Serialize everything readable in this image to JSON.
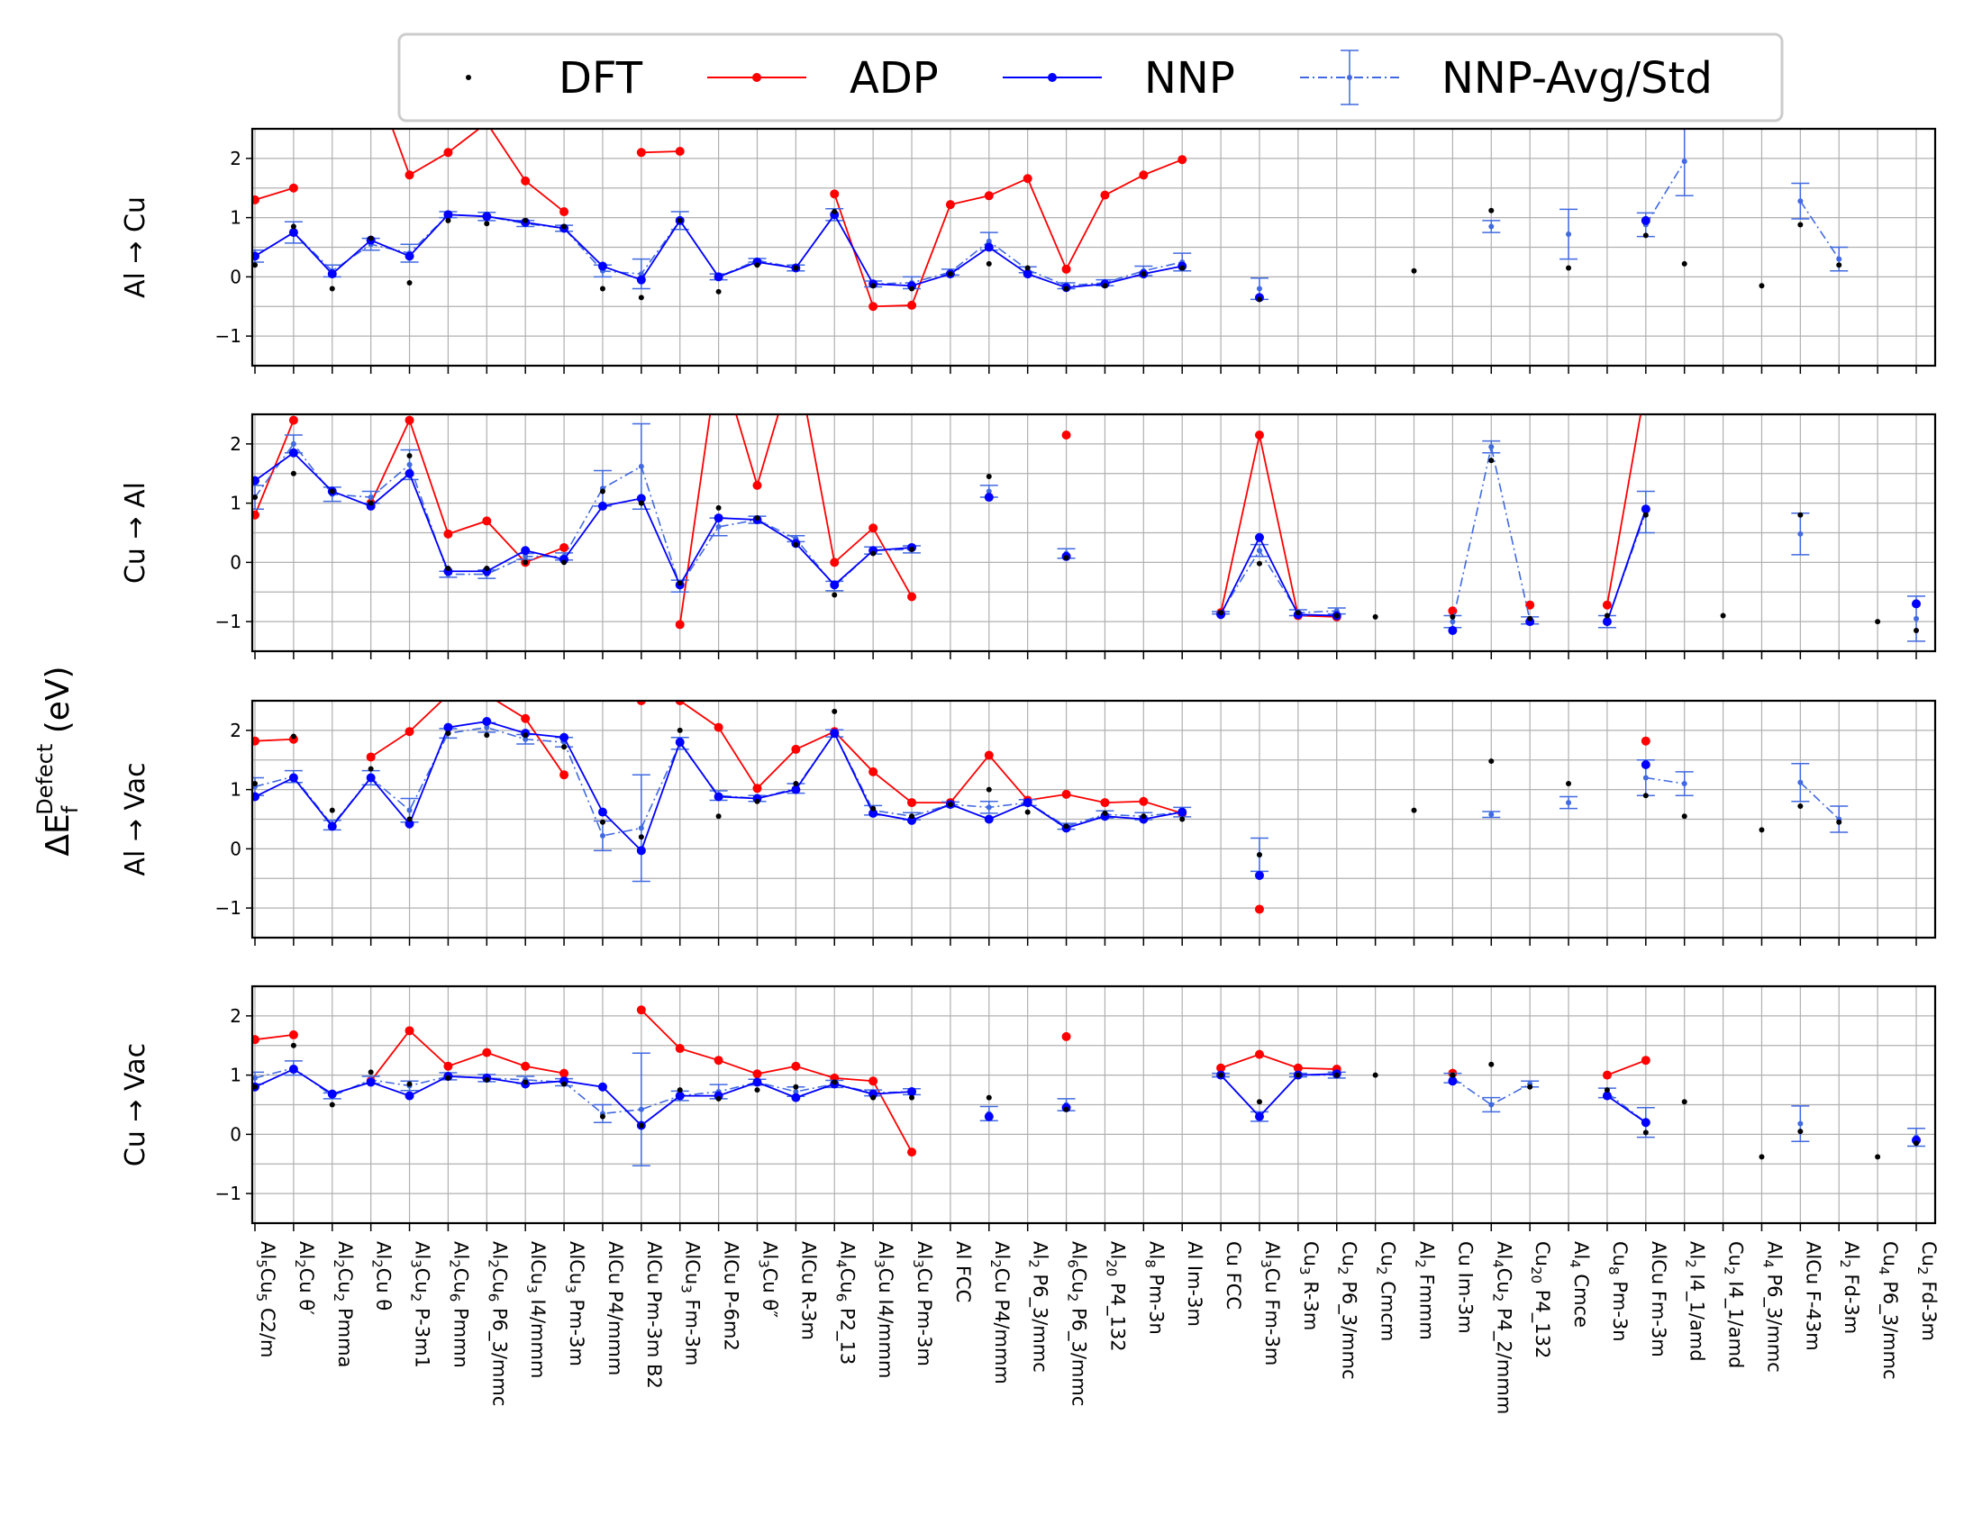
{
  "legend": {
    "dft": "DFT",
    "adp": "ADP",
    "nnp": "NNP",
    "nnp_avg": "NNP-Avg/Std"
  },
  "ylabel": {
    "prefix": "ΔE",
    "sub": "f",
    "sup": "Defect",
    "unit": " (eV)"
  },
  "colors": {
    "dft": "#000000",
    "adp": "#ff0000",
    "nnp": "#0000ff",
    "nnp_avg": "#4169e1",
    "grid": "#b0b0b0"
  },
  "chart_data": {
    "type": "line",
    "ylim": [
      -1.5,
      2.5
    ],
    "yticks": [
      2,
      1,
      0,
      -1
    ],
    "ytick_labels": [
      "2",
      "1",
      "0",
      "−1"
    ],
    "grid": true,
    "legend_position": "top",
    "categories": [
      [
        "Al",
        "5",
        "Cu",
        "5",
        " C2/m"
      ],
      [
        "Al",
        "2",
        "Cu θ′"
      ],
      [
        "Al",
        "2",
        "Cu",
        "2",
        " Pmma"
      ],
      [
        "Al",
        "2",
        "Cu  θ"
      ],
      [
        "Al",
        "3",
        "Cu",
        "2",
        " P-3m1"
      ],
      [
        "Al",
        "2",
        "Cu",
        "6",
        " Pmmn"
      ],
      [
        "Al",
        "2",
        "Cu",
        "6",
        " P6_3/mmc"
      ],
      [
        "AlCu",
        "3",
        " I4/mmm"
      ],
      [
        "AlCu",
        "3",
        " Pm-3m"
      ],
      [
        "AlCu P4/mmm"
      ],
      [
        "AlCu Pm-3m B2"
      ],
      [
        "AlCu",
        "3",
        " Fm-3m"
      ],
      [
        "AlCu P-6m2"
      ],
      [
        "Al",
        "3",
        "Cu θ″"
      ],
      [
        "AlCu R-3m"
      ],
      [
        "Al",
        "4",
        "Cu",
        "6",
        " P2_13"
      ],
      [
        "Al",
        "3",
        "Cu I4/mmm"
      ],
      [
        "Al",
        "3",
        "Cu Pm-3m"
      ],
      [
        "Al FCC"
      ],
      [
        "Al",
        "2",
        "Cu P4/mmm"
      ],
      [
        "Al",
        "2",
        " P6_3/mmc"
      ],
      [
        "Al",
        "6",
        "Cu",
        "2",
        " P6_3/mmc"
      ],
      [
        "Al",
        "20",
        " P4_132"
      ],
      [
        "Al",
        "8",
        " Pm-3n"
      ],
      [
        "Al Im-3m"
      ],
      [
        "Cu FCC"
      ],
      [
        "Al",
        "3",
        "Cu Fm-3m"
      ],
      [
        "Cu",
        "3",
        " R-3m"
      ],
      [
        "Cu",
        "2",
        " P6_3/mmc"
      ],
      [
        "Cu",
        "2",
        " Cmcm"
      ],
      [
        "Al",
        "2",
        " Fmmm"
      ],
      [
        "Cu Im-3m"
      ],
      [
        "Al",
        "4",
        "Cu",
        "2",
        " P4_2/mmm"
      ],
      [
        "Cu",
        "20",
        " P4_132"
      ],
      [
        "Al",
        "4",
        " Cmce"
      ],
      [
        "Cu",
        "8",
        " Pm-3n"
      ],
      [
        "AlCu Fm-3m"
      ],
      [
        "Al",
        "2",
        " I4_1/amd"
      ],
      [
        "Cu",
        "2",
        " I4_1/amd"
      ],
      [
        "Al",
        "4",
        " P6_3/mmc"
      ],
      [
        "AlCu F-43m"
      ],
      [
        "Al",
        "2",
        " Fd-3m"
      ],
      [
        "Cu",
        "4",
        " P6_3/mmc"
      ],
      [
        "Cu",
        "2",
        " Fd-3m"
      ]
    ],
    "panels": [
      {
        "label": "Al  →  Cu",
        "dft": [
          0.2,
          0.85,
          -0.2,
          0.65,
          -0.1,
          0.95,
          0.9,
          0.95,
          0.85,
          -0.2,
          -0.35,
          0.95,
          -0.25,
          0.2,
          0.15,
          1.1,
          -0.15,
          -0.2,
          0.05,
          0.22,
          0.15,
          -0.2,
          -0.15,
          0.05,
          0.15,
          null,
          -0.38,
          null,
          null,
          null,
          0.1,
          null,
          1.12,
          null,
          0.15,
          null,
          0.7,
          0.22,
          null,
          -0.15,
          0.88,
          0.2,
          null,
          null
        ],
        "adp": [
          1.3,
          1.5,
          null,
          3.5,
          1.72,
          2.1,
          2.6,
          1.62,
          1.1,
          null,
          2.1,
          2.12,
          null,
          3.5,
          null,
          1.4,
          -0.5,
          -0.48,
          1.22,
          1.37,
          1.66,
          0.13,
          1.38,
          1.72,
          1.98,
          null,
          null,
          null,
          null,
          null,
          null,
          null,
          null,
          null,
          null,
          null,
          null,
          null,
          null,
          null,
          null,
          null,
          null,
          null
        ],
        "nnp": [
          0.35,
          0.75,
          0.05,
          0.62,
          0.35,
          1.05,
          1.02,
          0.92,
          0.82,
          0.18,
          -0.05,
          0.95,
          0.0,
          0.25,
          0.15,
          1.05,
          -0.12,
          -0.15,
          0.05,
          0.5,
          0.05,
          -0.18,
          -0.12,
          0.05,
          0.18,
          null,
          -0.35,
          null,
          null,
          null,
          null,
          null,
          null,
          null,
          null,
          null,
          0.95,
          null,
          null,
          null,
          null,
          null,
          null,
          null
        ],
        "nnp_avg": [
          0.35,
          0.75,
          0.1,
          0.55,
          0.4,
          1.05,
          1.02,
          0.9,
          0.82,
          0.1,
          0.05,
          0.95,
          0.0,
          0.28,
          0.15,
          1.05,
          -0.12,
          -0.1,
          0.08,
          0.6,
          0.12,
          -0.15,
          -0.1,
          0.1,
          0.25,
          null,
          -0.2,
          null,
          null,
          null,
          null,
          null,
          0.85,
          null,
          0.72,
          null,
          0.88,
          1.95,
          null,
          null,
          1.28,
          0.3,
          null,
          null
        ],
        "nnp_std": [
          0.1,
          0.18,
          0.1,
          0.1,
          0.15,
          0.05,
          0.07,
          0.05,
          0.05,
          0.1,
          0.25,
          0.15,
          0.05,
          0.03,
          0.05,
          0.1,
          0.05,
          0.1,
          0.05,
          0.15,
          0.05,
          0.05,
          0.05,
          0.08,
          0.15,
          null,
          0.18,
          null,
          null,
          null,
          null,
          null,
          0.1,
          null,
          0.42,
          null,
          0.2,
          0.58,
          null,
          null,
          0.3,
          0.2,
          null,
          null
        ]
      },
      {
        "label": "Cu  →  Al",
        "dft": [
          1.1,
          1.5,
          1.2,
          1.0,
          1.8,
          -0.1,
          -0.1,
          0.0,
          0.0,
          1.2,
          1.0,
          -0.35,
          0.92,
          0.75,
          0.3,
          -0.55,
          0.15,
          0.22,
          null,
          1.45,
          null,
          0.08,
          null,
          null,
          null,
          -0.85,
          -0.02,
          -0.85,
          -0.9,
          -0.92,
          null,
          -0.92,
          1.72,
          -0.95,
          null,
          -0.9,
          0.8,
          null,
          -0.9,
          null,
          0.8,
          null,
          -1.0,
          -1.15
        ],
        "adp": [
          0.8,
          2.4,
          null,
          1.0,
          2.4,
          0.48,
          0.7,
          0.0,
          0.25,
          null,
          null,
          -1.05,
          3.5,
          1.3,
          3.5,
          0.0,
          0.58,
          -0.58,
          null,
          null,
          null,
          2.15,
          null,
          null,
          null,
          -0.85,
          2.15,
          -0.9,
          -0.92,
          null,
          null,
          -0.82,
          null,
          -0.72,
          null,
          -0.72,
          3.0,
          null,
          null,
          null,
          null,
          null,
          null,
          null
        ],
        "nnp": [
          1.38,
          1.85,
          1.2,
          0.95,
          1.5,
          -0.15,
          -0.15,
          0.2,
          0.05,
          0.95,
          1.08,
          -0.38,
          0.75,
          0.72,
          0.32,
          -0.38,
          0.2,
          0.25,
          null,
          1.1,
          null,
          0.1,
          null,
          null,
          null,
          -0.88,
          0.42,
          -0.88,
          -0.9,
          null,
          null,
          -1.15,
          null,
          -1.0,
          null,
          -1.0,
          0.9,
          null,
          null,
          null,
          null,
          null,
          null,
          -0.7
        ],
        "nnp_avg": [
          1.1,
          2.0,
          1.15,
          1.1,
          1.65,
          -0.2,
          -0.2,
          0.1,
          0.1,
          1.25,
          1.62,
          -0.4,
          0.6,
          0.72,
          0.4,
          -0.4,
          0.2,
          0.22,
          null,
          1.2,
          null,
          0.15,
          null,
          null,
          null,
          -0.85,
          0.2,
          -0.85,
          -0.82,
          null,
          null,
          -1.0,
          1.95,
          -0.98,
          null,
          -1.0,
          0.85,
          null,
          null,
          null,
          0.48,
          null,
          null,
          -0.95
        ],
        "nnp_std": [
          0.2,
          0.15,
          0.12,
          0.1,
          0.25,
          0.05,
          0.07,
          0.05,
          0.06,
          0.3,
          0.72,
          0.1,
          0.15,
          0.06,
          0.05,
          0.08,
          0.06,
          0.06,
          null,
          0.1,
          null,
          0.08,
          null,
          null,
          null,
          0.02,
          0.1,
          0.05,
          0.05,
          null,
          null,
          0.1,
          0.1,
          0.06,
          null,
          0.1,
          0.35,
          null,
          null,
          null,
          0.35,
          null,
          null,
          0.38
        ]
      },
      {
        "label": "Al  →  Vac",
        "dft": [
          1.1,
          1.9,
          0.65,
          1.35,
          0.5,
          1.95,
          1.92,
          1.92,
          1.72,
          0.45,
          0.2,
          2.0,
          0.55,
          0.8,
          1.1,
          2.32,
          0.68,
          0.55,
          0.75,
          1.0,
          0.62,
          0.38,
          0.6,
          0.55,
          0.5,
          null,
          -0.1,
          null,
          null,
          null,
          0.65,
          null,
          1.48,
          null,
          1.1,
          null,
          0.9,
          0.55,
          null,
          0.32,
          0.72,
          0.45,
          null,
          null
        ],
        "adp": [
          1.82,
          1.85,
          null,
          1.55,
          1.98,
          2.6,
          2.6,
          2.2,
          1.25,
          null,
          2.5,
          2.5,
          2.05,
          1.02,
          1.68,
          1.98,
          1.3,
          0.78,
          0.78,
          1.58,
          0.82,
          0.92,
          0.78,
          0.8,
          0.6,
          null,
          -1.02,
          null,
          null,
          null,
          null,
          null,
          null,
          null,
          null,
          null,
          1.82,
          null,
          null,
          null,
          null,
          null,
          null,
          null
        ],
        "nnp": [
          0.88,
          1.2,
          0.38,
          1.2,
          0.42,
          2.05,
          2.15,
          1.95,
          1.88,
          0.62,
          -0.03,
          1.8,
          0.88,
          0.85,
          1.0,
          1.95,
          0.6,
          0.48,
          0.75,
          0.5,
          0.78,
          0.35,
          0.55,
          0.5,
          0.62,
          null,
          -0.45,
          null,
          null,
          null,
          null,
          null,
          null,
          null,
          null,
          null,
          1.42,
          null,
          null,
          null,
          null,
          null,
          null,
          null
        ],
        "nnp_avg": [
          1.05,
          1.22,
          0.4,
          1.2,
          0.65,
          1.95,
          2.05,
          1.85,
          1.8,
          0.22,
          0.35,
          1.78,
          0.9,
          0.85,
          1.02,
          1.95,
          0.65,
          0.55,
          0.75,
          0.7,
          0.78,
          0.38,
          0.58,
          0.55,
          0.62,
          null,
          -0.1,
          null,
          null,
          null,
          null,
          null,
          0.58,
          null,
          0.78,
          null,
          1.2,
          1.1,
          null,
          null,
          1.12,
          0.5,
          null,
          null
        ],
        "nnp_std": [
          0.15,
          0.1,
          0.08,
          0.12,
          0.2,
          0.08,
          0.08,
          0.08,
          0.08,
          0.25,
          0.9,
          0.1,
          0.08,
          0.05,
          0.08,
          0.06,
          0.08,
          0.06,
          0.04,
          0.1,
          0.05,
          0.05,
          0.06,
          0.06,
          0.08,
          null,
          0.28,
          null,
          null,
          null,
          null,
          null,
          0.05,
          null,
          0.1,
          null,
          0.3,
          0.2,
          null,
          null,
          0.32,
          0.22,
          null,
          null
        ]
      },
      {
        "label": "Cu  →  Vac",
        "dft": [
          0.8,
          1.5,
          0.5,
          1.05,
          0.85,
          0.95,
          0.92,
          0.88,
          0.85,
          0.3,
          0.15,
          0.75,
          0.6,
          0.75,
          0.8,
          0.88,
          0.62,
          0.62,
          null,
          0.62,
          null,
          0.42,
          null,
          null,
          null,
          1.0,
          0.55,
          1.0,
          1.0,
          1.0,
          null,
          1.0,
          1.18,
          0.8,
          null,
          0.75,
          0.03,
          0.55,
          null,
          -0.38,
          0.05,
          null,
          -0.38,
          -0.15
        ],
        "adp": [
          1.6,
          1.68,
          null,
          0.9,
          1.75,
          1.15,
          1.38,
          1.15,
          1.03,
          null,
          2.1,
          1.45,
          1.25,
          1.02,
          1.15,
          0.95,
          0.9,
          -0.3,
          null,
          null,
          null,
          1.65,
          null,
          null,
          null,
          1.12,
          1.35,
          1.12,
          1.1,
          null,
          null,
          1.03,
          null,
          null,
          null,
          1.0,
          1.25,
          null,
          null,
          null,
          null,
          null,
          null,
          null
        ],
        "nnp": [
          0.8,
          1.1,
          0.68,
          0.88,
          0.65,
          0.98,
          0.95,
          0.85,
          0.9,
          0.8,
          0.15,
          0.65,
          0.65,
          0.88,
          0.62,
          0.85,
          0.68,
          0.72,
          null,
          0.3,
          null,
          0.45,
          null,
          null,
          null,
          1.0,
          0.3,
          1.0,
          1.02,
          null,
          null,
          0.9,
          null,
          null,
          null,
          0.65,
          0.2,
          null,
          null,
          null,
          null,
          null,
          null,
          -0.1
        ],
        "nnp_avg": [
          0.95,
          1.12,
          0.65,
          0.92,
          0.82,
          0.98,
          0.95,
          0.92,
          0.88,
          0.35,
          0.42,
          0.65,
          0.72,
          0.88,
          0.72,
          0.85,
          0.7,
          0.72,
          null,
          0.35,
          null,
          0.5,
          null,
          null,
          null,
          1.0,
          0.3,
          1.0,
          1.0,
          null,
          null,
          0.95,
          0.5,
          0.85,
          null,
          0.7,
          0.2,
          null,
          null,
          null,
          0.18,
          null,
          null,
          -0.05
        ],
        "nnp_std": [
          0.1,
          0.12,
          0.05,
          0.06,
          0.08,
          0.06,
          0.06,
          0.06,
          0.06,
          0.15,
          0.95,
          0.08,
          0.12,
          0.05,
          0.08,
          0.06,
          0.05,
          0.05,
          null,
          0.12,
          null,
          0.1,
          null,
          null,
          null,
          0.03,
          0.08,
          0.03,
          0.05,
          null,
          null,
          0.08,
          0.12,
          0.05,
          null,
          0.08,
          0.25,
          null,
          null,
          null,
          0.3,
          null,
          null,
          0.15
        ]
      }
    ]
  }
}
